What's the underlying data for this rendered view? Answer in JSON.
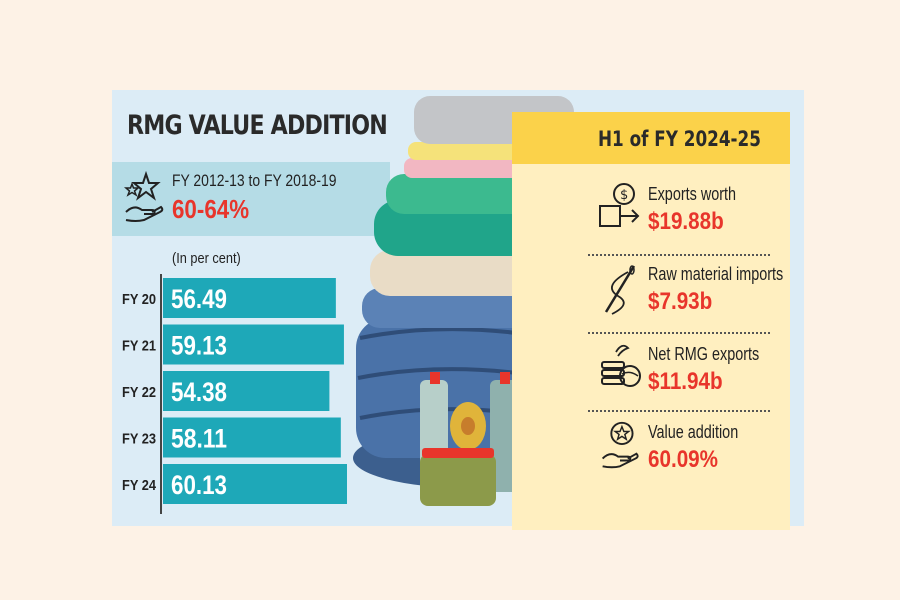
{
  "title": "RMG VALUE ADDITION",
  "period": {
    "label": "FY 2012-13 to FY 2018-19",
    "value": "60-64%"
  },
  "h1": {
    "title": "H1 of FY 2024-25",
    "stats": [
      {
        "label": "Exports worth",
        "value": "$19.88b",
        "icon": "export-boxes-icon"
      },
      {
        "label": "Raw material imports",
        "value": "$7.93b",
        "icon": "thread-needle-icon"
      },
      {
        "label": "Net RMG exports",
        "value": "$11.94b",
        "icon": "coins-globe-icon"
      },
      {
        "label": "Value addition",
        "value": "60.09%",
        "icon": "hand-star-icon"
      }
    ]
  },
  "colors": {
    "bar": "#1ea8b8",
    "accent": "#e8352b",
    "panel": "#dcecf6",
    "highlight": "#fbd24a"
  },
  "chart_data": {
    "type": "bar",
    "orientation": "horizontal",
    "ylabel": "(In per cent)",
    "categories": [
      "FY 20",
      "FY 21",
      "FY 22",
      "FY 23",
      "FY 24"
    ],
    "values": [
      56.49,
      59.13,
      54.38,
      58.11,
      60.13
    ],
    "value_labels": [
      "56.49",
      "59.13",
      "54.38",
      "58.11",
      "60.13"
    ]
  }
}
